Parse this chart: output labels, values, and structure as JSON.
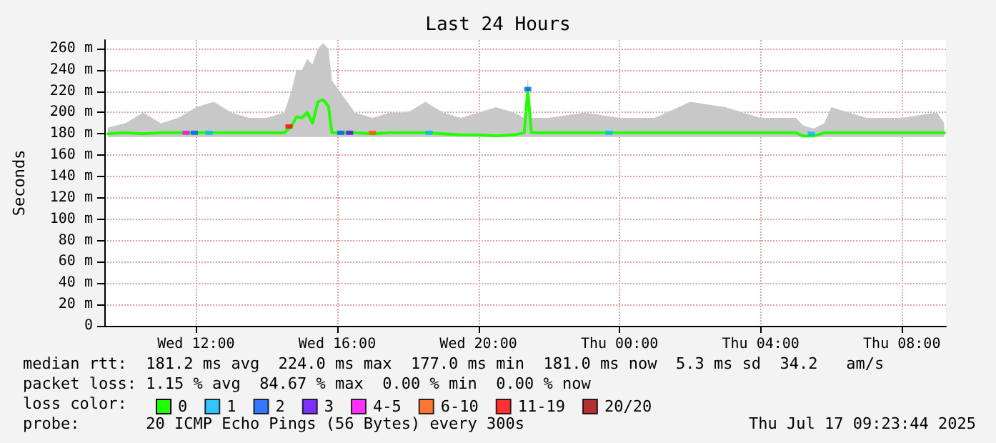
{
  "chart_data": {
    "type": "line",
    "title": "Last 24 Hours",
    "ylabel": "Seconds",
    "legend_title": "loss color:",
    "legend": "bottom",
    "grid": true,
    "line_style": "solid",
    "xlim": [
      "2025-07-16T09:24",
      "2025-07-17T09:15"
    ],
    "xticks": [
      {
        "value": "2025-07-16T12:00",
        "label": "Wed 12:00"
      },
      {
        "value": "2025-07-16T16:00",
        "label": "Wed 16:00"
      },
      {
        "value": "2025-07-16T20:00",
        "label": "Wed 20:00"
      },
      {
        "value": "2025-07-17T00:00",
        "label": "Thu 00:00"
      },
      {
        "value": "2025-07-17T04:00",
        "label": "Thu 04:00"
      },
      {
        "value": "2025-07-17T08:00",
        "label": "Thu 08:00"
      }
    ],
    "ylim": [
      0,
      268
    ],
    "yticks": [
      0,
      {
        "value": 20,
        "label": "20 m"
      },
      {
        "value": 40,
        "label": "40 m"
      },
      {
        "value": 60,
        "label": "60 m"
      },
      {
        "value": 80,
        "label": "80 m"
      },
      {
        "value": 100,
        "label": "100 m"
      },
      {
        "value": 120,
        "label": "120 m"
      },
      {
        "value": 140,
        "label": "140 m"
      },
      {
        "value": 160,
        "label": "160 m"
      },
      {
        "value": 180,
        "label": "180 m"
      },
      {
        "value": 200,
        "label": "200 m"
      },
      {
        "value": 220,
        "label": "220 m"
      },
      {
        "value": 240,
        "label": "240 m"
      },
      {
        "value": 260,
        "label": "260 m"
      }
    ],
    "series": [
      {
        "name": "0",
        "color": "#20ff00",
        "marker": "none",
        "x": [
          "2025-07-16T09:30",
          "2025-07-16T10:00",
          "2025-07-16T10:30",
          "2025-07-16T11:00",
          "2025-07-16T11:30",
          "2025-07-16T12:00",
          "2025-07-16T12:30",
          "2025-07-16T13:00",
          "2025-07-16T13:30",
          "2025-07-16T14:00",
          "2025-07-16T14:30",
          "2025-07-16T14:42",
          "2025-07-16T14:51",
          "2025-07-16T15:00",
          "2025-07-16T15:09",
          "2025-07-16T15:18",
          "2025-07-16T15:27",
          "2025-07-16T15:36",
          "2025-07-16T15:45",
          "2025-07-16T15:51",
          "2025-07-16T16:30",
          "2025-07-16T17:00",
          "2025-07-16T17:30",
          "2025-07-16T18:00",
          "2025-07-16T18:30",
          "2025-07-16T19:00",
          "2025-07-16T19:30",
          "2025-07-16T20:00",
          "2025-07-16T20:30",
          "2025-07-16T21:00",
          "2025-07-16T21:18",
          "2025-07-16T21:24",
          "2025-07-16T21:30",
          "2025-07-16T22:00",
          "2025-07-16T23:00",
          "2025-07-17T00:00",
          "2025-07-17T01:00",
          "2025-07-17T02:00",
          "2025-07-17T03:00",
          "2025-07-17T04:00",
          "2025-07-17T05:00",
          "2025-07-17T05:12",
          "2025-07-17T05:30",
          "2025-07-17T05:48",
          "2025-07-17T06:00",
          "2025-07-17T07:00",
          "2025-07-17T08:00",
          "2025-07-17T09:00",
          "2025-07-17T09:12"
        ],
        "values": [
          180,
          181,
          180,
          181,
          181,
          181,
          181,
          181,
          181,
          181,
          181,
          187,
          196,
          195,
          200,
          190,
          210,
          212,
          206,
          181,
          181,
          180,
          181,
          181,
          181,
          180,
          179,
          179,
          178,
          179,
          181,
          222,
          181,
          181,
          181,
          181,
          181,
          181,
          181,
          181,
          181,
          178,
          178,
          181,
          181,
          181,
          181,
          181,
          181
        ],
        "lower": [
          177,
          177,
          177,
          177,
          177,
          177,
          177,
          177,
          177,
          177,
          177,
          177,
          177,
          177,
          177,
          177,
          177,
          177,
          177,
          177,
          177,
          177,
          177,
          177,
          177,
          177,
          177,
          177,
          177,
          177,
          177,
          177,
          177,
          177,
          177,
          177,
          177,
          177,
          177,
          177,
          177,
          177,
          177,
          177,
          177,
          177,
          177,
          177,
          177
        ],
        "upper": [
          186,
          190,
          200,
          190,
          195,
          205,
          210,
          200,
          195,
          195,
          200,
          220,
          240,
          240,
          250,
          245,
          260,
          265,
          260,
          230,
          200,
          195,
          200,
          200,
          210,
          200,
          195,
          200,
          205,
          200,
          195,
          232,
          195,
          195,
          200,
          195,
          195,
          210,
          205,
          195,
          195,
          188,
          185,
          190,
          205,
          195,
          195,
          200,
          190
        ]
      },
      {
        "name": "1",
        "color": "#00b8ff",
        "type": "scatter",
        "marker": "square",
        "x": [
          "2025-07-16T12:22",
          "2025-07-16T18:36",
          "2025-07-16T23:42",
          "2025-07-17T05:26"
        ],
        "values": [
          181,
          181,
          181,
          180
        ]
      },
      {
        "name": "2",
        "color": "#0059ff",
        "type": "scatter",
        "marker": "square",
        "x": [
          "2025-07-16T11:57",
          "2025-07-16T16:06",
          "2025-07-16T21:24"
        ],
        "values": [
          181,
          181,
          222
        ]
      },
      {
        "name": "3",
        "color": "#5e00ff",
        "type": "scatter",
        "marker": "square",
        "x": [
          "2025-07-16T16:21"
        ],
        "values": [
          181
        ]
      },
      {
        "name": "4-5",
        "color": "#ff00ff",
        "type": "scatter",
        "marker": "square",
        "x": [
          "2025-07-16T11:43"
        ],
        "values": [
          181
        ]
      },
      {
        "name": "6-10",
        "color": "#ff5500",
        "type": "scatter",
        "marker": "square",
        "x": [
          "2025-07-16T17:00"
        ],
        "values": [
          181
        ]
      },
      {
        "name": "11-19",
        "color": "#ff0000",
        "type": "scatter",
        "marker": "square",
        "x": [
          "2025-07-16T14:38"
        ],
        "values": [
          187
        ]
      },
      {
        "name": "20/20",
        "color": "#a10000",
        "type": "scatter"
      }
    ],
    "annotations": [
      "median rtt:  181.2 ms avg  224.0 ms max  177.0 ms min  181.0 ms now  5.3 ms sd  34.2   am/s",
      "packet loss: 1.15 % avg  84.67 % max  0.00 % min  0.00 % now",
      "probe:       20 ICMP Echo Pings (56 Bytes) every 300s",
      "Thu Jul 17 09:23:44 2025"
    ]
  }
}
